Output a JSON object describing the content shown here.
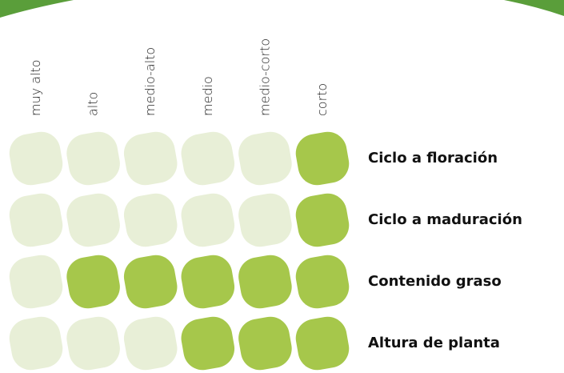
{
  "columns": [
    "muy alto",
    "alto",
    "medio-alto",
    "medio",
    "medio-corto",
    "corto"
  ],
  "rows": [
    {
      "label": "Ciclo a floración",
      "filled": [
        false,
        false,
        false,
        false,
        false,
        true
      ]
    },
    {
      "label": "Ciclo a maduración",
      "filled": [
        false,
        false,
        false,
        false,
        false,
        true
      ]
    },
    {
      "label": "Contenido graso",
      "filled": [
        false,
        true,
        true,
        true,
        true,
        true
      ]
    },
    {
      "label": "Altura de planta",
      "filled": [
        false,
        false,
        false,
        true,
        true,
        true
      ]
    }
  ],
  "colors": {
    "filled": "#a6c74b",
    "empty": "#e8efd7"
  }
}
